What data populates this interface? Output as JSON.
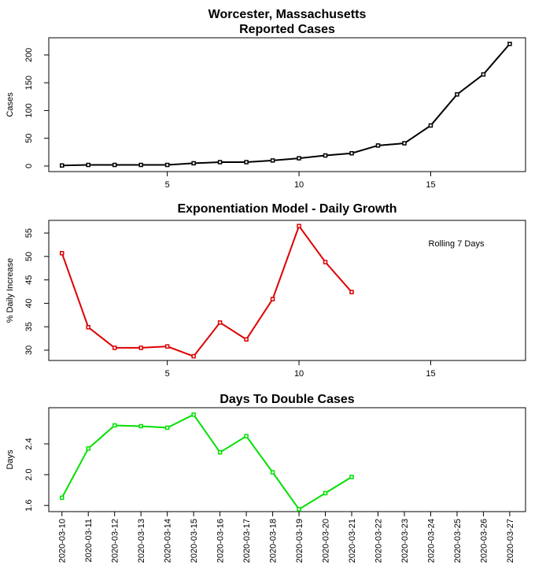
{
  "chart_data": [
    {
      "type": "line",
      "title": "Worcester, Massachusetts",
      "subtitle": "Reported Cases",
      "y_label": "Cases",
      "x": [
        1,
        2,
        3,
        4,
        5,
        6,
        7,
        8,
        9,
        10,
        11,
        12,
        13,
        14,
        15,
        16,
        17,
        18
      ],
      "series": [
        {
          "color": "#000000",
          "values": [
            1,
            2,
            2,
            2,
            2,
            5,
            7,
            7,
            10,
            14,
            19,
            23,
            37,
            41,
            73,
            129,
            165,
            220
          ]
        }
      ],
      "xlim": [
        0.5,
        18.6
      ],
      "xticks": [
        5,
        10,
        15
      ],
      "ylim": [
        -10,
        231
      ],
      "yticks": [
        0,
        50,
        100,
        150,
        200
      ]
    },
    {
      "type": "line",
      "title": "Exponentiation Model - Daily Growth",
      "y_label": "% Daily Increase",
      "annotation": "Rolling 7 Days",
      "x": [
        1,
        2,
        3,
        4,
        5,
        6,
        7,
        8,
        9,
        10,
        11,
        12
      ],
      "series": [
        {
          "color": "#dd0000",
          "values": [
            50.7,
            34.9,
            30.5,
            30.5,
            30.8,
            28.7,
            35.9,
            32.3,
            40.9,
            56.5,
            48.8,
            42.4
          ]
        }
      ],
      "xlim": [
        0.5,
        18.6
      ],
      "xticks": [
        5,
        10,
        15
      ],
      "ylim": [
        27.8,
        57.7
      ],
      "yticks": [
        30,
        35,
        40,
        45,
        50,
        55
      ]
    },
    {
      "type": "line",
      "title": "Days To Double Cases",
      "y_label": "Days",
      "categories": [
        "2020-03-10",
        "2020-03-11",
        "2020-03-12",
        "2020-03-13",
        "2020-03-14",
        "2020-03-15",
        "2020-03-16",
        "2020-03-17",
        "2020-03-18",
        "2020-03-19",
        "2020-03-20",
        "2020-03-21",
        "2020-03-22",
        "2020-03-23",
        "2020-03-24",
        "2020-03-25",
        "2020-03-26",
        "2020-03-27"
      ],
      "series": [
        {
          "color": "#00e000",
          "values": [
            1.7,
            2.34,
            2.64,
            2.63,
            2.61,
            2.78,
            2.29,
            2.5,
            2.03,
            1.55,
            1.76,
            1.97,
            null,
            null,
            null,
            null,
            null,
            null
          ]
        }
      ],
      "ylim": [
        1.52,
        2.87
      ],
      "yticks": [
        1.6,
        {
          "value": 2,
          "label": "2.0"
        },
        2.4
      ]
    }
  ]
}
